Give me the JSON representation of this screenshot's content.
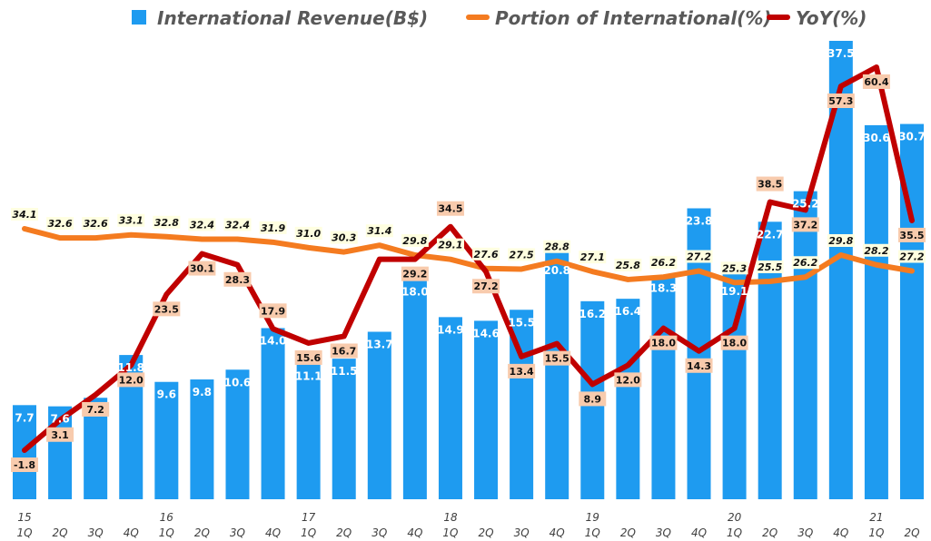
{
  "chart_data": {
    "type": "bar",
    "title": "",
    "xlabel": "",
    "ylabel": "",
    "categories": [
      "15 1Q",
      "2Q",
      "3Q",
      "4Q",
      "16 1Q",
      "2Q",
      "3Q",
      "4Q",
      "17 1Q",
      "2Q",
      "3Q",
      "4Q",
      "18 1Q",
      "2Q",
      "3Q",
      "4Q",
      "19 1Q",
      "2Q",
      "3Q",
      "4Q",
      "20 1Q",
      "2Q",
      "3Q",
      "4Q",
      "21 1Q",
      "2Q"
    ],
    "x_ticks": [
      {
        "year": "15",
        "q": "1Q"
      },
      {
        "year": "",
        "q": "2Q"
      },
      {
        "year": "",
        "q": "3Q"
      },
      {
        "year": "",
        "q": "4Q"
      },
      {
        "year": "16",
        "q": "1Q"
      },
      {
        "year": "",
        "q": "2Q"
      },
      {
        "year": "",
        "q": "3Q"
      },
      {
        "year": "",
        "q": "4Q"
      },
      {
        "year": "17",
        "q": "1Q"
      },
      {
        "year": "",
        "q": "2Q"
      },
      {
        "year": "",
        "q": "3Q"
      },
      {
        "year": "",
        "q": "4Q"
      },
      {
        "year": "18",
        "q": "1Q"
      },
      {
        "year": "",
        "q": "2Q"
      },
      {
        "year": "",
        "q": "3Q"
      },
      {
        "year": "",
        "q": "4Q"
      },
      {
        "year": "19",
        "q": "1Q"
      },
      {
        "year": "",
        "q": "2Q"
      },
      {
        "year": "",
        "q": "3Q"
      },
      {
        "year": "",
        "q": "4Q"
      },
      {
        "year": "20",
        "q": "1Q"
      },
      {
        "year": "",
        "q": "2Q"
      },
      {
        "year": "",
        "q": "3Q"
      },
      {
        "year": "",
        "q": "4Q"
      },
      {
        "year": "21",
        "q": "1Q"
      },
      {
        "year": "",
        "q": "2Q"
      }
    ],
    "legend_placement": "top",
    "grid": false,
    "series": [
      {
        "name": "International Revenue(B$)",
        "type": "bar",
        "color": "#1e9bf0",
        "values": [
          7.7,
          7.6,
          8.3,
          11.8,
          9.6,
          9.8,
          10.6,
          14.0,
          11.1,
          11.5,
          13.7,
          18.0,
          14.9,
          14.6,
          15.5,
          20.8,
          16.2,
          16.4,
          18.3,
          23.8,
          19.1,
          22.7,
          25.2,
          37.5,
          30.6,
          30.7
        ],
        "ylim": [
          0,
          37.5
        ]
      },
      {
        "name": "Portion of International(%)",
        "type": "line",
        "color": "#f47b20",
        "values": [
          34.1,
          32.6,
          32.6,
          33.1,
          32.8,
          32.4,
          32.4,
          31.9,
          31.0,
          30.3,
          31.4,
          29.8,
          29.1,
          27.6,
          27.5,
          28.8,
          27.1,
          25.8,
          26.2,
          27.2,
          25.3,
          25.5,
          26.2,
          29.8,
          28.2,
          27.2
        ]
      },
      {
        "name": "YoY(%)",
        "type": "line",
        "color": "#c00000",
        "values": [
          -1.8,
          3.1,
          7.2,
          12.0,
          23.5,
          30.1,
          28.3,
          17.9,
          15.6,
          16.7,
          29.2,
          29.2,
          34.5,
          27.2,
          13.4,
          15.5,
          8.9,
          12.0,
          18.0,
          14.3,
          18.0,
          38.5,
          37.2,
          57.3,
          60.4,
          35.5
        ]
      }
    ]
  }
}
